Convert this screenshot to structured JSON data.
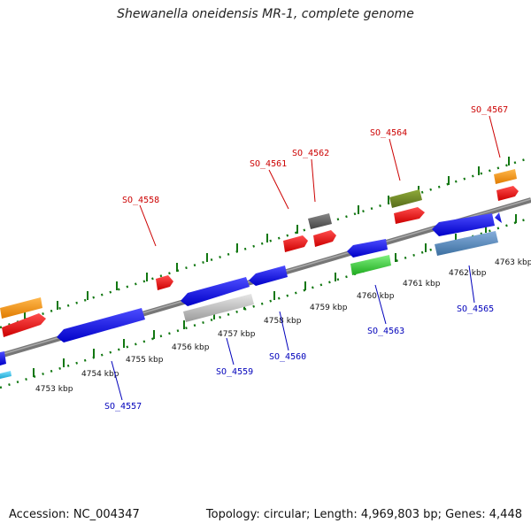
{
  "title": "Shewanella oneidensis MR-1, complete genome",
  "footer": {
    "accession": "Accession: NC_004347",
    "topology": "Topology: circular; Length: 4,969,803 bp; Genes: 4,448"
  },
  "colors": {
    "backbone": "#888888",
    "tick": "#117711",
    "label_top": "#cc0000",
    "label_bottom": "#0000bb"
  },
  "ticks": [
    "4753 kbp",
    "4754 kbp",
    "4755 kbp",
    "4756 kbp",
    "4757 kbp",
    "4758 kbp",
    "4759 kbp",
    "4760 kbp",
    "4761 kbp",
    "4762 kbp",
    "4763 kbp"
  ],
  "labels_top": [
    "SO_4558",
    "SO_4561",
    "SO_4562",
    "SO_4564",
    "SO_4567"
  ],
  "labels_bottom": [
    "SO_4557",
    "SO_4559",
    "SO_4560",
    "SO_4563",
    "SO_4565"
  ],
  "feature_colors": [
    "orange",
    "red",
    "blue",
    "silver",
    "olive",
    "gray",
    "green",
    "steelblue"
  ]
}
